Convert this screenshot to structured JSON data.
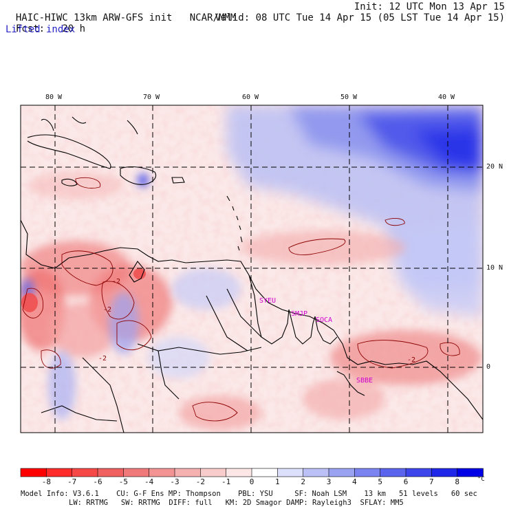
{
  "header": {
    "model": "HAIC-HIWC 13km ARW-GFS init",
    "org": "NCAR/MMM",
    "init": "Init: 12 UTC Mon 13 Apr 15",
    "fcst_label": "Fcst:",
    "fcst_value": "20 h",
    "valid": "Valid: 08 UTC Tue 14 Apr 15 (05 LST Tue 14 Apr 15)",
    "field": "Lifted index"
  },
  "map": {
    "lon_labels": [
      "80 W",
      "70 W",
      "60 W",
      "50 W",
      "40 W"
    ],
    "lat_labels": [
      "20 N",
      "10 N",
      "0"
    ],
    "contour_labels": [
      "-2",
      "-2",
      "-2",
      "-2"
    ],
    "stations": [
      "SYEU",
      "SMJP",
      "SOCA",
      "SBBE"
    ],
    "colors": {
      "station": "#d000d0",
      "contour": "#8b0000",
      "coast": "#000000",
      "stable_blue": "#2f3cf0",
      "unstable_red": "#f07070"
    }
  },
  "colorbar": {
    "labels": [
      "-8",
      "-7",
      "-6",
      "-5",
      "-4",
      "-3",
      "-2",
      "-1",
      "0",
      "1",
      "2",
      "3",
      "4",
      "5",
      "6",
      "7",
      "8"
    ],
    "unit": "°C",
    "colors": [
      "#ff0000",
      "#ff2a2a",
      "#f74848",
      "#f06060",
      "#f07a7a",
      "#f29494",
      "#f5b0b0",
      "#f9cccc",
      "#fde6e6",
      "#ffffff",
      "#dde0fa",
      "#bbc1f6",
      "#9aa2f2",
      "#7a83ef",
      "#5b64ec",
      "#3d46ea",
      "#1f28e8",
      "#0000e6"
    ]
  },
  "footer": {
    "line1": "Model Info: V3.6.1    CU: G-F Ens MP: Thompson    PBL: YSU     SF: Noah LSM    13 km   51 levels   60 sec",
    "line2": "LW: RRTMG   SW: RRTMG  DIFF: full   KM: 2D Smagor DAMP: Rayleigh3  SFLAY: MM5"
  }
}
